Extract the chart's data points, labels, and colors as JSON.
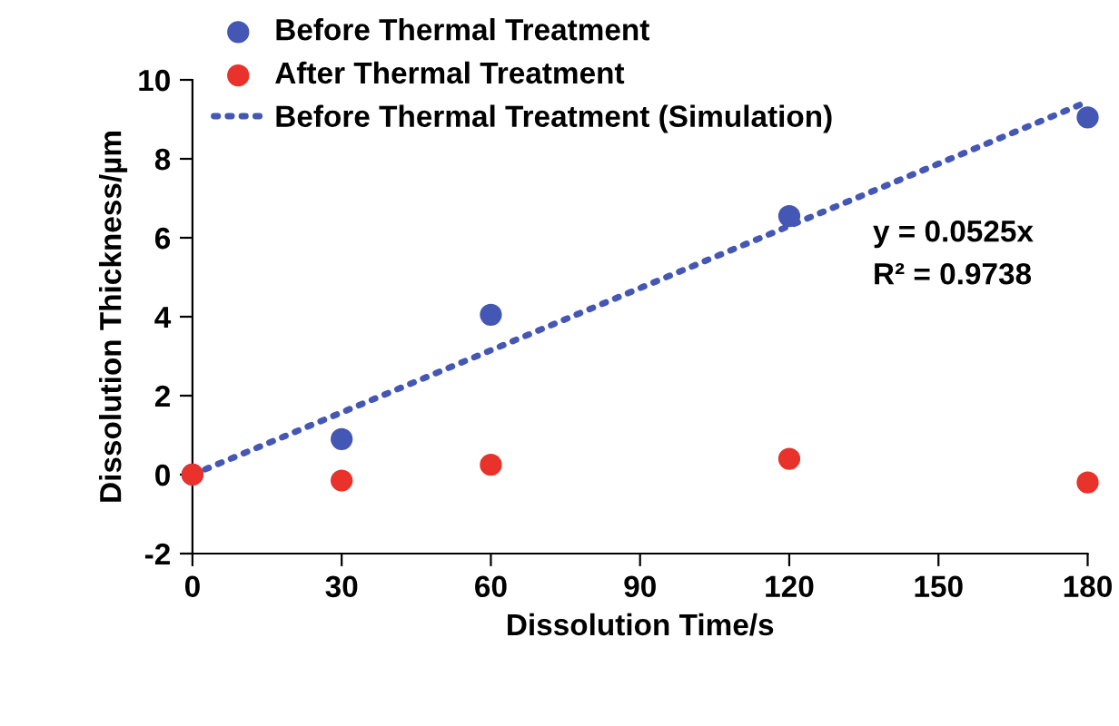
{
  "chart_data": {
    "type": "scatter",
    "xlabel": "Dissolution Time/s",
    "ylabel": "Dissolution Thickness/µm",
    "x": [
      0,
      30,
      60,
      120,
      180
    ],
    "series": [
      {
        "name": "Before Thermal Treatment",
        "color": "#4457b4",
        "values": [
          0,
          0.9,
          4.05,
          6.55,
          9.05
        ],
        "marker": "circle"
      },
      {
        "name": "After Thermal Treatment",
        "color": "#e8322b",
        "values": [
          0,
          -0.15,
          0.25,
          0.4,
          -0.2
        ],
        "marker": "circle"
      },
      {
        "name": "Before Thermal Treatment (Simulation)",
        "color": "#4457b4",
        "type": "line",
        "line_style": "dotted",
        "x": [
          0,
          180
        ],
        "values": [
          0,
          9.45
        ],
        "marker": "none"
      }
    ],
    "annotations": [
      "y = 0.0525x",
      "R² = 0.9738"
    ],
    "xlim": [
      0,
      180
    ],
    "xticks": [
      0,
      30,
      60,
      90,
      120,
      150,
      180
    ],
    "ylim": [
      -2,
      10
    ],
    "yticks": [
      -2,
      0,
      2,
      4,
      6,
      8,
      10
    ],
    "grid": false,
    "legend": "top left"
  }
}
